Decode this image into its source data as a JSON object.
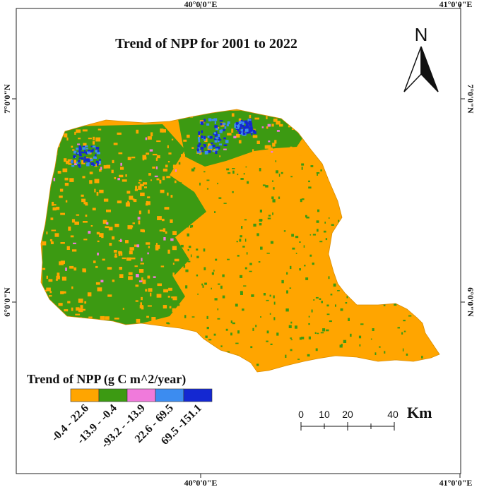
{
  "map": {
    "title": "Trend of NPP for 2001 to 2022",
    "graticule": {
      "lon_top": [
        "40°0'0\"E",
        "41°0'0\"E"
      ],
      "lon_bottom": [
        "40°0'0\"E",
        "41°0'0\"E"
      ],
      "lat_left": [
        "7°0'0\"N",
        "6°0'0\"N"
      ],
      "lat_right": [
        "7°0'0\"N",
        "6°0'0\"N"
      ]
    },
    "north_arrow": {
      "label": "N",
      "icon": "north-arrow-icon"
    },
    "legend": {
      "title": "Trend of NPP (g C m^2/year)",
      "classes": [
        {
          "label": "-0.4 - 22.6",
          "color": "#FFA500"
        },
        {
          "label": "-13.9 - -0.4",
          "color": "#3C9A12"
        },
        {
          "label": "-93.2 - -13.9",
          "color": "#F07ADB"
        },
        {
          "label": "22.6 - 69.5",
          "color": "#3C8CF0"
        },
        {
          "label": "69.5 -151.1",
          "color": "#1428D2"
        }
      ]
    },
    "scale_bar": {
      "ticks": [
        "0",
        "10",
        "20",
        "40"
      ],
      "unit": "Km"
    },
    "colors": {
      "dominant": "#FFA500",
      "secondary": "#3C9A12"
    }
  }
}
